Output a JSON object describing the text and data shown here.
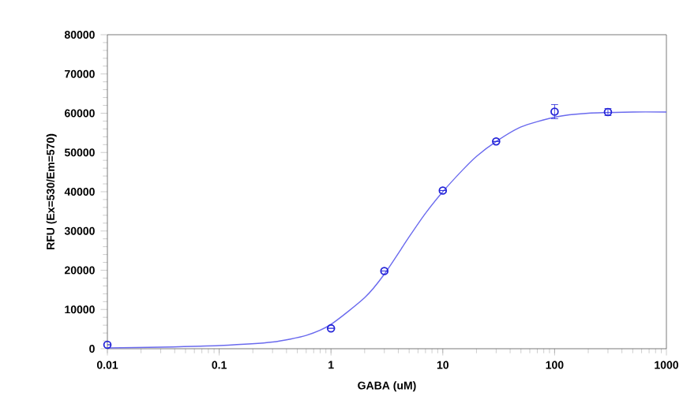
{
  "chart_data": {
    "type": "scatter",
    "xlabel": "GABA (uM)",
    "ylabel": "RFU (Ex=530/Em=570)",
    "log": "x",
    "xlim": [
      0.01,
      1000
    ],
    "xticks": [
      0.01,
      0.1,
      1,
      10,
      100,
      1000
    ],
    "ylim": [
      0,
      80000
    ],
    "yticks": [
      0,
      10000,
      20000,
      30000,
      40000,
      50000,
      60000,
      70000,
      80000
    ],
    "grid": false,
    "series": [
      {
        "color": "#2424d8",
        "marker": "circle",
        "x": [
          0.01,
          1,
          3,
          10,
          30,
          100,
          300
        ],
        "values": [
          1000,
          5200,
          19800,
          40300,
          52800,
          60400,
          60300
        ],
        "errors": [
          null,
          null,
          null,
          null,
          null,
          1800,
          900
        ]
      },
      {
        "type": "line",
        "color": "#6a6aee",
        "x": [
          0.01,
          0.03,
          0.1,
          0.3,
          0.6,
          1,
          2,
          3,
          5,
          7,
          10,
          15,
          20,
          30,
          50,
          100,
          200,
          500,
          1000
        ],
        "values": [
          200,
          400,
          800,
          1700,
          3400,
          6200,
          13000,
          19000,
          28500,
          34500,
          40000,
          45500,
          49000,
          52800,
          56500,
          59000,
          60000,
          60300,
          60300
        ]
      }
    ]
  }
}
